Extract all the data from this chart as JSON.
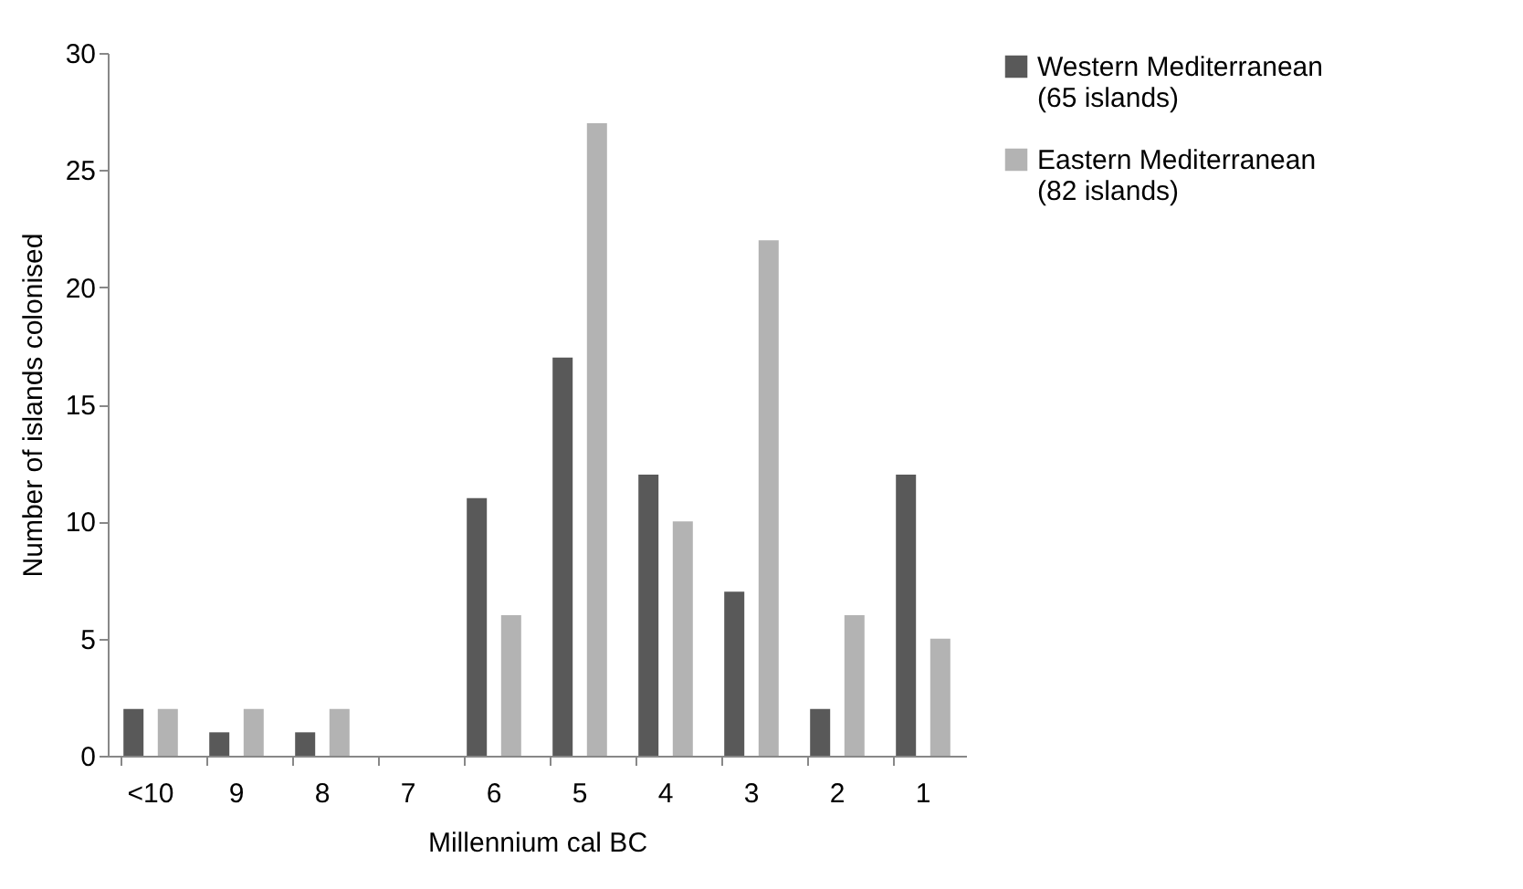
{
  "chart_data": {
    "type": "bar",
    "xlabel": "Millennium cal BC",
    "ylabel": "Number of islands colonised",
    "categories": [
      "<10",
      "9",
      "8",
      "7",
      "6",
      "5",
      "4",
      "3",
      "2",
      "1"
    ],
    "series": [
      {
        "name": "Western Mediterranean (65 islands)",
        "color": "#595959",
        "values": [
          2,
          1,
          1,
          0,
          11,
          17,
          12,
          7,
          2,
          12
        ]
      },
      {
        "name": "Eastern Mediterranean (82 islands)",
        "color": "#b3b3b3",
        "values": [
          2,
          2,
          2,
          0,
          6,
          27,
          10,
          22,
          6,
          5
        ]
      }
    ],
    "ylim": [
      0,
      30
    ],
    "yticks": [
      0,
      5,
      10,
      15,
      20,
      25,
      30
    ],
    "grid": false,
    "legend": "right"
  }
}
